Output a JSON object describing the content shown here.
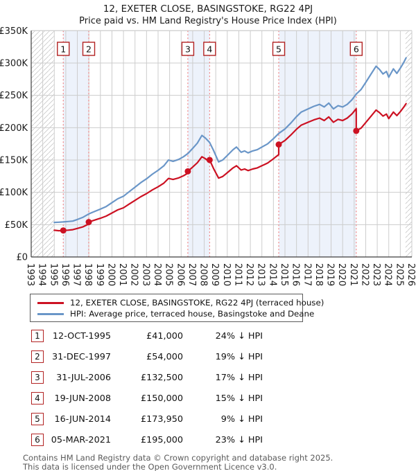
{
  "title": "12, EXETER CLOSE, BASINGSTOKE, RG22 4PJ",
  "subtitle": "Price paid vs. HM Land Registry's House Price Index (HPI)",
  "chart_data": {
    "type": "line",
    "title": "12, EXETER CLOSE, BASINGSTOKE, RG22 4PJ — Price paid vs. HPI",
    "x_axis": {
      "min": 1993,
      "max": 2026,
      "ticks": [
        "1993",
        "1994",
        "1995",
        "1996",
        "1997",
        "1998",
        "1999",
        "2000",
        "2001",
        "2002",
        "2003",
        "2004",
        "2005",
        "2006",
        "2007",
        "2008",
        "2009",
        "2010",
        "2011",
        "2012",
        "2013",
        "2014",
        "2015",
        "2016",
        "2017",
        "2018",
        "2019",
        "2020",
        "2021",
        "2022",
        "2023",
        "2024",
        "2025",
        "2026"
      ]
    },
    "y_axis": {
      "min": 0,
      "max": 350000,
      "unit": "GBP",
      "tick_step": 50000,
      "tick_labels": [
        "£0",
        "£50K",
        "£100K",
        "£150K",
        "£200K",
        "£250K",
        "£300K",
        "£350K"
      ]
    },
    "grid": true,
    "legend_position": "below",
    "no_data_hatch_regions": [
      [
        1993.0,
        1995.0
      ],
      [
        2025.45,
        2026.0
      ]
    ],
    "ownership_bands": [
      [
        1995.78,
        1997.99
      ],
      [
        2006.58,
        2008.47
      ],
      [
        2014.46,
        2021.18
      ]
    ],
    "colors": {
      "property": "#cc1122",
      "hpi": "#6a96c8",
      "sale_line": "#f07878",
      "band": "#edf2fb",
      "grid": "#cccccc",
      "hatch": "#c8c8c8",
      "spine": "#3c3c3c",
      "badge_border": "#b22222"
    },
    "series": [
      {
        "name": "12, EXETER CLOSE, BASINGSTOKE, RG22 4PJ (terraced house)",
        "color": "#cc1122",
        "unit": "GBP_thousands",
        "points": [
          [
            1995.0,
            41.3
          ],
          [
            1995.4,
            40.6
          ],
          [
            1995.78,
            41.0
          ],
          [
            1996.2,
            41.5
          ],
          [
            1996.6,
            42.2
          ],
          [
            1997.0,
            44.1
          ],
          [
            1997.5,
            46.7
          ],
          [
            1997.9,
            50.2
          ],
          [
            1997.99,
            54.0
          ],
          [
            1998.3,
            55.9
          ],
          [
            1999.0,
            59.9
          ],
          [
            1999.5,
            63.2
          ],
          [
            2000.0,
            68.0
          ],
          [
            2000.5,
            72.9
          ],
          [
            2001.0,
            76.1
          ],
          [
            2001.5,
            81.8
          ],
          [
            2002.0,
            87.5
          ],
          [
            2002.5,
            93.2
          ],
          [
            2003.0,
            98.0
          ],
          [
            2003.5,
            103.7
          ],
          [
            2004.0,
            108.5
          ],
          [
            2004.5,
            114.2
          ],
          [
            2004.9,
            121.5
          ],
          [
            2005.3,
            119.9
          ],
          [
            2005.8,
            122.3
          ],
          [
            2006.2,
            125.6
          ],
          [
            2006.58,
            129.6
          ],
          [
            2006.58,
            132.5
          ],
          [
            2007.0,
            139.1
          ],
          [
            2007.4,
            145.7
          ],
          [
            2007.8,
            155.0
          ],
          [
            2008.1,
            152.0
          ],
          [
            2008.47,
            146.6
          ],
          [
            2008.47,
            150.0
          ],
          [
            2008.8,
            137.0
          ],
          [
            2009.25,
            122.0
          ],
          [
            2009.6,
            124.5
          ],
          [
            2010.0,
            130.3
          ],
          [
            2010.5,
            137.8
          ],
          [
            2010.8,
            141.1
          ],
          [
            2011.2,
            134.5
          ],
          [
            2011.5,
            136.1
          ],
          [
            2011.8,
            133.6
          ],
          [
            2012.2,
            136.1
          ],
          [
            2012.6,
            137.8
          ],
          [
            2013.0,
            141.1
          ],
          [
            2013.5,
            145.3
          ],
          [
            2014.0,
            151.9
          ],
          [
            2014.46,
            158.5
          ],
          [
            2014.46,
            173.95
          ],
          [
            2015.0,
            180.2
          ],
          [
            2015.5,
            188.4
          ],
          [
            2016.0,
            197.5
          ],
          [
            2016.4,
            203.8
          ],
          [
            2017.0,
            208.4
          ],
          [
            2017.5,
            212.0
          ],
          [
            2018.0,
            214.8
          ],
          [
            2018.4,
            211.1
          ],
          [
            2018.8,
            216.6
          ],
          [
            2019.2,
            208.4
          ],
          [
            2019.6,
            212.9
          ],
          [
            2020.0,
            211.1
          ],
          [
            2020.4,
            214.8
          ],
          [
            2020.8,
            221.1
          ],
          [
            2021.18,
            229.3
          ],
          [
            2021.18,
            195.0
          ],
          [
            2021.6,
            199.4
          ],
          [
            2022.0,
            207.9
          ],
          [
            2022.5,
            218.7
          ],
          [
            2022.9,
            227.2
          ],
          [
            2023.2,
            223.3
          ],
          [
            2023.5,
            217.9
          ],
          [
            2023.8,
            221.0
          ],
          [
            2024.0,
            214.1
          ],
          [
            2024.4,
            224.1
          ],
          [
            2024.7,
            218.7
          ],
          [
            2025.0,
            224.8
          ],
          [
            2025.3,
            231.8
          ],
          [
            2025.5,
            237.2
          ]
        ]
      },
      {
        "name": "HPI: Average price, terraced house, Basingstoke and Deane",
        "color": "#6a96c8",
        "unit": "GBP_thousands",
        "points": [
          [
            1995.0,
            53.5
          ],
          [
            1995.4,
            53.8
          ],
          [
            1995.78,
            54.2
          ],
          [
            1996.2,
            54.8
          ],
          [
            1996.6,
            55.5
          ],
          [
            1997.0,
            58.0
          ],
          [
            1997.5,
            61.5
          ],
          [
            1997.99,
            66.5
          ],
          [
            1998.3,
            69.0
          ],
          [
            1999.0,
            74.0
          ],
          [
            1999.5,
            78.0
          ],
          [
            2000.0,
            84.0
          ],
          [
            2000.5,
            90.0
          ],
          [
            2001.0,
            94.0
          ],
          [
            2001.5,
            101.0
          ],
          [
            2002.0,
            108.0
          ],
          [
            2002.5,
            115.0
          ],
          [
            2003.0,
            121.0
          ],
          [
            2003.5,
            128.0
          ],
          [
            2004.0,
            134.0
          ],
          [
            2004.5,
            141.0
          ],
          [
            2004.9,
            150.0
          ],
          [
            2005.3,
            148.0
          ],
          [
            2005.8,
            151.0
          ],
          [
            2006.2,
            155.0
          ],
          [
            2006.58,
            160.0
          ],
          [
            2007.0,
            168.0
          ],
          [
            2007.4,
            176.0
          ],
          [
            2007.8,
            188.0
          ],
          [
            2008.1,
            184.0
          ],
          [
            2008.47,
            177.0
          ],
          [
            2008.8,
            165.0
          ],
          [
            2009.25,
            147.0
          ],
          [
            2009.6,
            150.0
          ],
          [
            2010.0,
            157.0
          ],
          [
            2010.5,
            166.0
          ],
          [
            2010.8,
            170.0
          ],
          [
            2011.2,
            162.0
          ],
          [
            2011.5,
            164.0
          ],
          [
            2011.8,
            161.0
          ],
          [
            2012.2,
            164.0
          ],
          [
            2012.6,
            166.0
          ],
          [
            2013.0,
            170.0
          ],
          [
            2013.5,
            175.0
          ],
          [
            2014.0,
            183.0
          ],
          [
            2014.46,
            191.0
          ],
          [
            2015.0,
            198.0
          ],
          [
            2015.5,
            207.0
          ],
          [
            2016.0,
            217.0
          ],
          [
            2016.4,
            224.0
          ],
          [
            2017.0,
            229.0
          ],
          [
            2017.5,
            233.0
          ],
          [
            2018.0,
            236.0
          ],
          [
            2018.4,
            232.0
          ],
          [
            2018.8,
            238.0
          ],
          [
            2019.2,
            229.0
          ],
          [
            2019.6,
            234.0
          ],
          [
            2020.0,
            232.0
          ],
          [
            2020.4,
            236.0
          ],
          [
            2020.8,
            243.0
          ],
          [
            2021.18,
            252.0
          ],
          [
            2021.6,
            259.0
          ],
          [
            2022.0,
            270.0
          ],
          [
            2022.5,
            284.0
          ],
          [
            2022.9,
            295.0
          ],
          [
            2023.2,
            290.0
          ],
          [
            2023.5,
            283.0
          ],
          [
            2023.8,
            287.0
          ],
          [
            2024.0,
            278.0
          ],
          [
            2024.4,
            291.0
          ],
          [
            2024.7,
            284.0
          ],
          [
            2025.0,
            292.0
          ],
          [
            2025.3,
            301.0
          ],
          [
            2025.5,
            308.0
          ]
        ]
      }
    ],
    "sale_markers": [
      {
        "n": "1",
        "year": 1995.78,
        "price_k": 41.0
      },
      {
        "n": "2",
        "year": 1997.99,
        "price_k": 54.0
      },
      {
        "n": "3",
        "year": 2006.58,
        "price_k": 132.5
      },
      {
        "n": "4",
        "year": 2008.47,
        "price_k": 150.0
      },
      {
        "n": "5",
        "year": 2014.46,
        "price_k": 173.95
      },
      {
        "n": "6",
        "year": 2021.18,
        "price_k": 195.0
      }
    ]
  },
  "legend": {
    "items": [
      {
        "label": "12, EXETER CLOSE, BASINGSTOKE, RG22 4PJ (terraced house)",
        "color": "#cc1122"
      },
      {
        "label": "HPI: Average price, terraced house, Basingstoke and Deane",
        "color": "#6a96c8"
      }
    ]
  },
  "table": {
    "rows": [
      {
        "num": "1",
        "date": "12-OCT-1995",
        "price": "£41,000",
        "pct": "24% ↓ HPI"
      },
      {
        "num": "2",
        "date": "31-DEC-1997",
        "price": "£54,000",
        "pct": "19% ↓ HPI"
      },
      {
        "num": "3",
        "date": "31-JUL-2006",
        "price": "£132,500",
        "pct": "17% ↓ HPI"
      },
      {
        "num": "4",
        "date": "19-JUN-2008",
        "price": "£150,000",
        "pct": "15% ↓ HPI"
      },
      {
        "num": "5",
        "date": "16-JUN-2014",
        "price": "£173,950",
        "pct": "9% ↓ HPI"
      },
      {
        "num": "6",
        "date": "05-MAR-2021",
        "price": "£195,000",
        "pct": "23% ↓ HPI"
      }
    ]
  },
  "footer": {
    "line1": "Contains HM Land Registry data © Crown copyright and database right 2025.",
    "line2": "This data is licensed under the Open Government Licence v3.0."
  }
}
